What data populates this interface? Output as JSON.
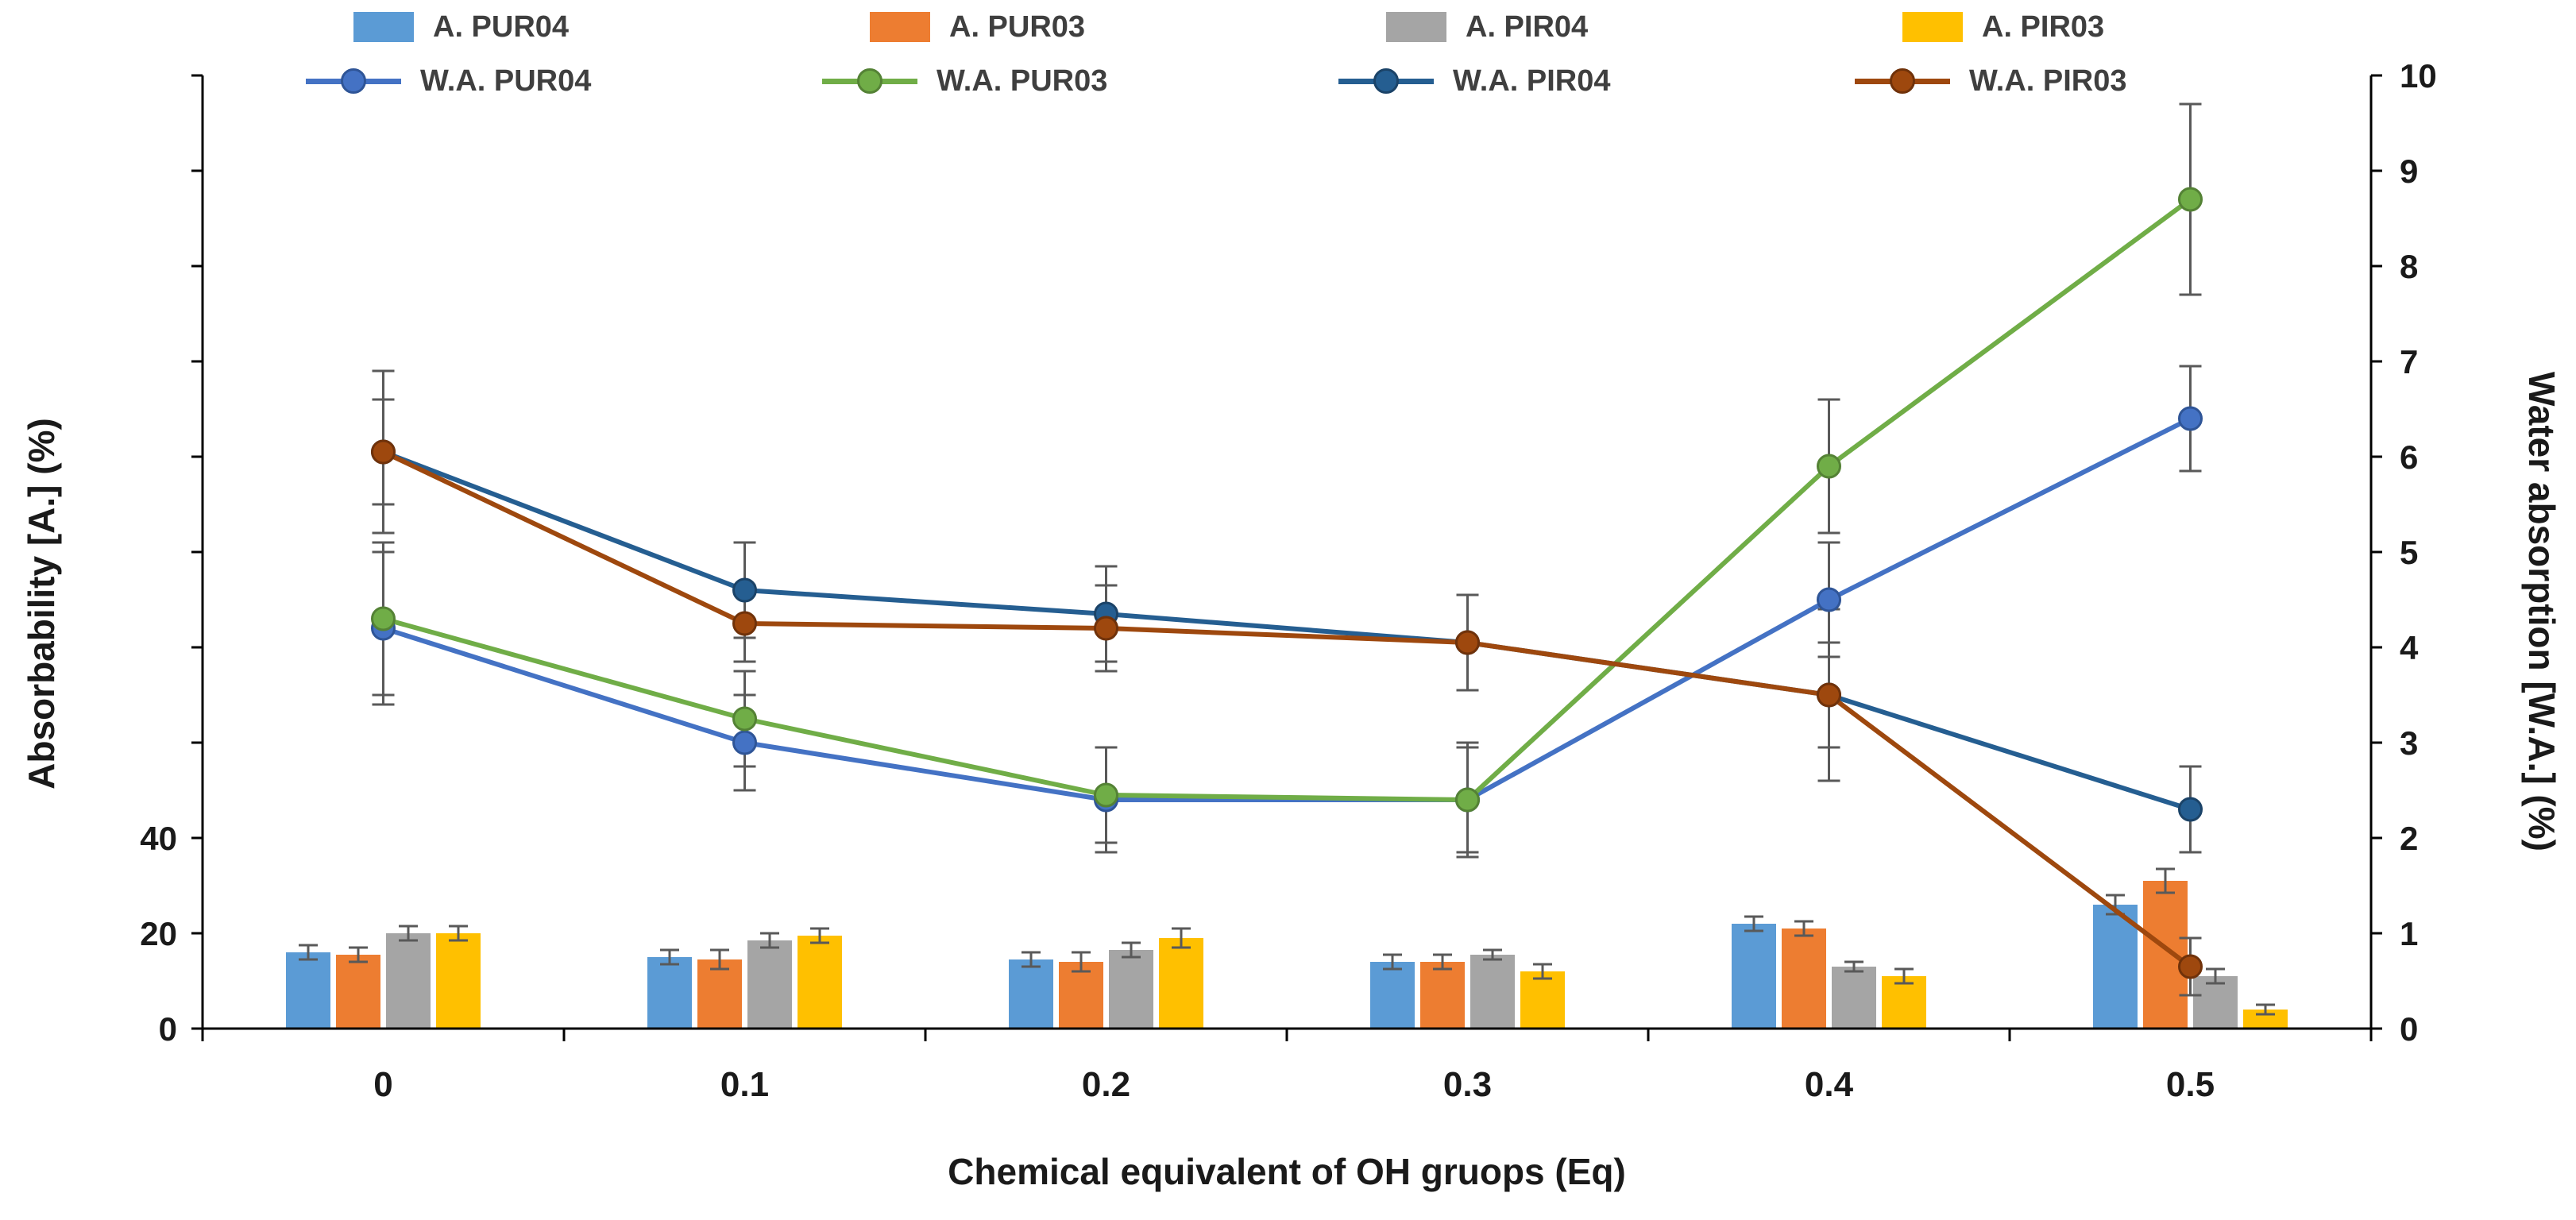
{
  "chart_data": {
    "type": "bar",
    "secondary_type": "line",
    "title": "",
    "xlabel": "Chemical equivalent of OH gruops (Eq)",
    "ylabel_left": "Absorbability [A.] (%)",
    "ylabel_right": "Water absorption [W.A.] (%)",
    "categories": [
      "0",
      "0.1",
      "0.2",
      "0.3",
      "0.4",
      "0.5"
    ],
    "left_axis": {
      "min": 0,
      "max": 200,
      "tick_step": 20,
      "visible_tick_labels": [
        "0",
        "20",
        "40"
      ],
      "ylim": [
        0,
        200
      ]
    },
    "right_axis": {
      "min": 0,
      "max": 10,
      "tick_step": 1,
      "tick_labels": [
        "0",
        "1",
        "2",
        "3",
        "4",
        "5",
        "6",
        "7",
        "8",
        "9",
        "10"
      ],
      "ylim": [
        0,
        10
      ]
    },
    "grid": false,
    "legend_position": "top",
    "error_bar_color": "#595959",
    "bar_series": [
      {
        "name": "A. PUR04",
        "color": "#5B9BD5",
        "axis": "left",
        "values": [
          16,
          15,
          14.5,
          14,
          22,
          26
        ],
        "errors": [
          1.5,
          1.5,
          1.5,
          1.5,
          1.5,
          2
        ]
      },
      {
        "name": "A. PUR03",
        "color": "#ED7D31",
        "axis": "left",
        "values": [
          15.5,
          14.5,
          14,
          14,
          21,
          31
        ],
        "errors": [
          1.5,
          2,
          2,
          1.5,
          1.5,
          2.5
        ]
      },
      {
        "name": "A. PIR04",
        "color": "#A5A5A5",
        "axis": "left",
        "values": [
          20,
          18.5,
          16.5,
          15.5,
          13,
          11
        ],
        "errors": [
          1.5,
          1.5,
          1.5,
          1,
          1,
          1.5
        ]
      },
      {
        "name": "A. PIR03",
        "color": "#FFC000",
        "axis": "left",
        "values": [
          20,
          19.5,
          19,
          12,
          11,
          4
        ],
        "errors": [
          1.5,
          1.5,
          2,
          1.5,
          1.5,
          1
        ]
      }
    ],
    "line_series": [
      {
        "name": "W.A. PUR04",
        "color": "#4472C4",
        "marker_stroke": "#2F5597",
        "axis": "right",
        "values": [
          4.2,
          3.0,
          2.4,
          2.4,
          4.5,
          6.4
        ],
        "errors": [
          0.8,
          0.5,
          0.55,
          0.55,
          0.6,
          0.55
        ]
      },
      {
        "name": "W.A. PUR03",
        "color": "#70AD47",
        "marker_stroke": "#548235",
        "axis": "right",
        "values": [
          4.3,
          3.25,
          2.45,
          2.4,
          5.9,
          8.7
        ],
        "errors": [
          0.8,
          0.5,
          0.5,
          0.6,
          0.7,
          1.0
        ]
      },
      {
        "name": "W.A. PIR04",
        "color": "#255E91",
        "marker_stroke": "#1B4368",
        "axis": "right",
        "values": [
          6.05,
          4.6,
          4.35,
          4.05,
          3.5,
          2.3
        ],
        "errors": [
          0.85,
          0.5,
          0.5,
          0.5,
          0.9,
          0.45
        ]
      },
      {
        "name": "W.A. PIR03",
        "color": "#9E480E",
        "marker_stroke": "#70320A",
        "axis": "right",
        "values": [
          6.05,
          4.25,
          4.2,
          4.05,
          3.5,
          0.65
        ],
        "errors": [
          0.55,
          0.4,
          0.45,
          0.5,
          0.55,
          0.3
        ]
      }
    ]
  }
}
